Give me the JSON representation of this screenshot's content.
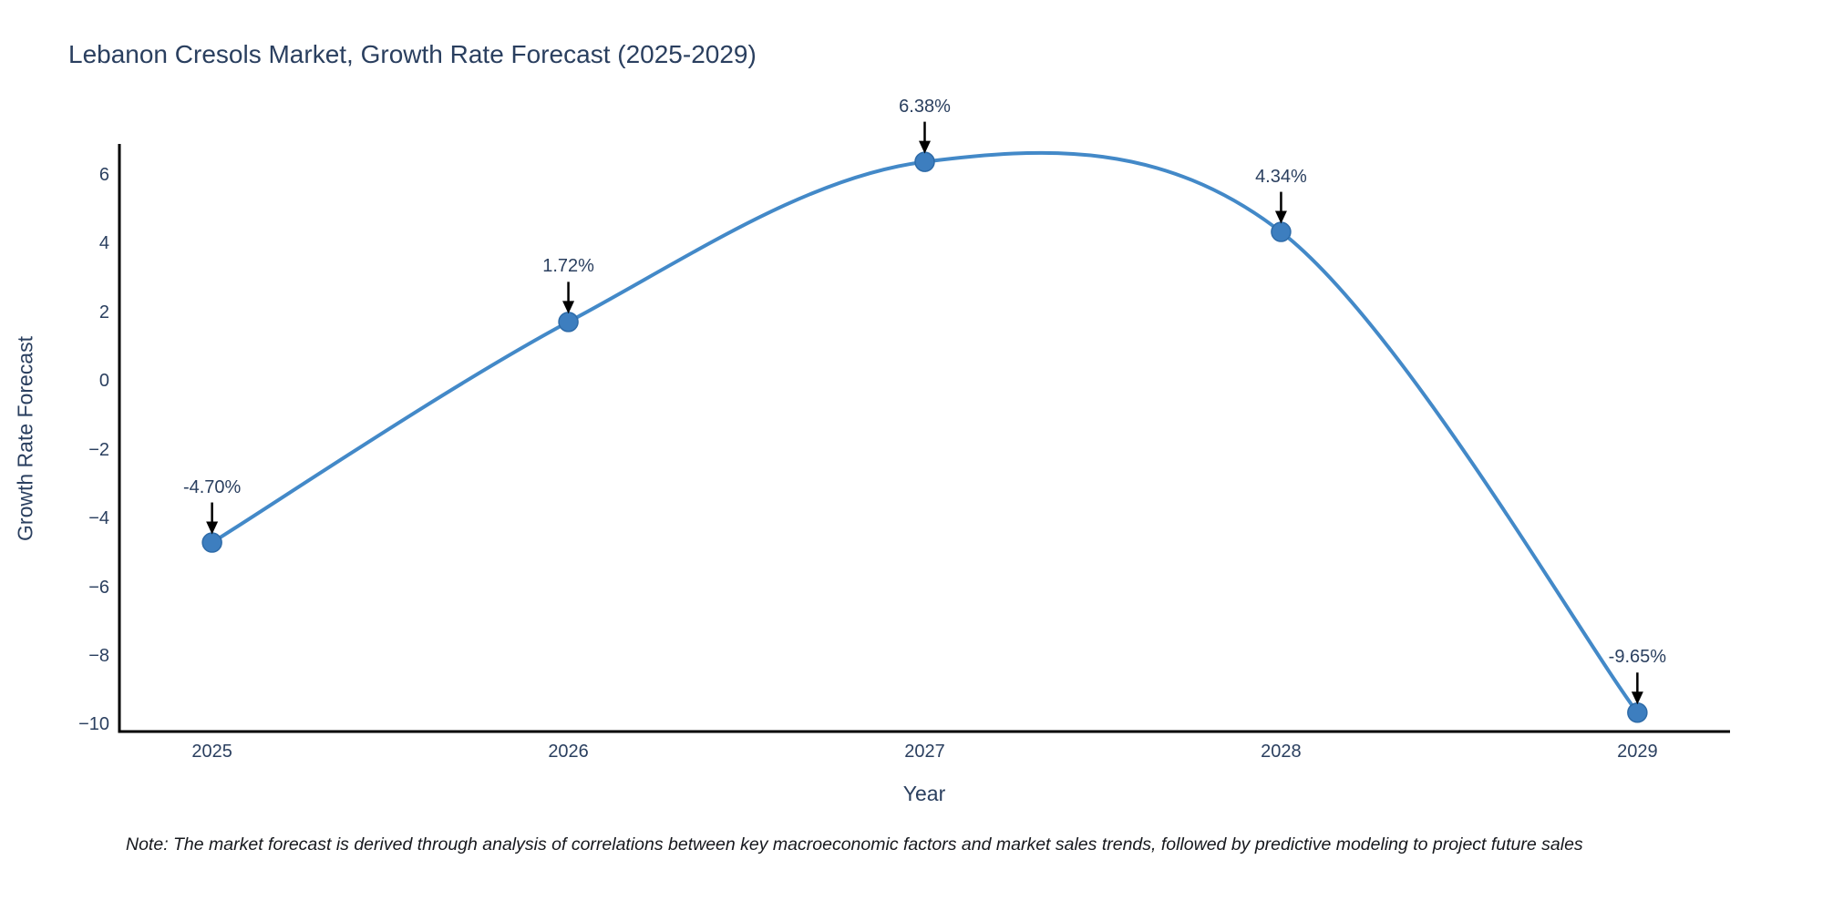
{
  "note": "Note: The market forecast is derived through analysis of correlations between key macroeconomic factors and market sales trends, followed by predictive modeling to project future sales",
  "colors": {
    "line": "#4389c8",
    "marker_fill": "#3d7ebf",
    "marker_edge": "#2e6ba8",
    "axis_line": "#000000",
    "text": "#2a3f5f",
    "arrow": "#000000",
    "background": "#ffffff"
  },
  "chart_data": {
    "type": "line",
    "title": "Lebanon Cresols Market, Growth Rate Forecast (2025-2029)",
    "xlabel": "Year",
    "ylabel": "Growth Rate Forecast",
    "x": [
      2025,
      2026,
      2027,
      2028,
      2029
    ],
    "series": [
      {
        "name": "Growth Rate Forecast",
        "values": [
          -4.7,
          1.72,
          6.38,
          4.34,
          -9.65
        ]
      }
    ],
    "point_labels": [
      "-4.70%",
      "1.72%",
      "6.38%",
      "4.34%",
      "-9.65%"
    ],
    "xticks": [
      2025,
      2026,
      2027,
      2028,
      2029
    ],
    "yticks": [
      6,
      4,
      2,
      0,
      -2,
      -4,
      -6,
      -8,
      -10
    ],
    "xlim": [
      2024.74,
      2029.26
    ],
    "ylim": [
      -10.2,
      6.9
    ],
    "grid": false,
    "legend": "none",
    "line_shape": "spline",
    "markers": true,
    "annotation_arrows": true
  }
}
